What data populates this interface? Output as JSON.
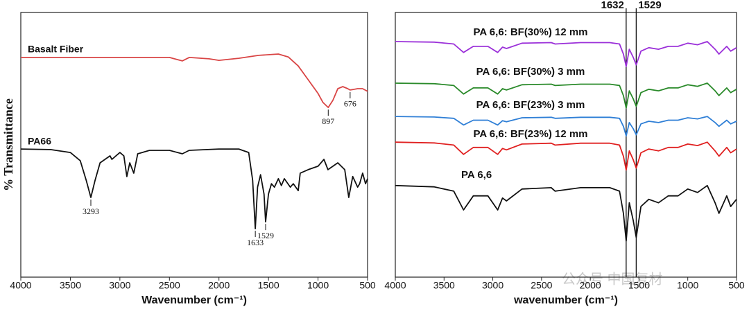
{
  "chart_data": [
    {
      "type": "line",
      "ylabel": "% Transmittance",
      "xlabel": "Wavenumber (cm⁻¹)",
      "xlim": [
        4000,
        500
      ],
      "xticks": [
        4000,
        3500,
        3000,
        2500,
        2000,
        1500,
        1000,
        500
      ],
      "ylim": [
        0,
        100
      ],
      "series": [
        {
          "name": "Basalt Fiber",
          "color": "#d94545",
          "x": [
            4000,
            3500,
            3000,
            2500,
            2370,
            2300,
            2100,
            2000,
            1800,
            1600,
            1400,
            1300,
            1200,
            1100,
            1000,
            950,
            897,
            850,
            800,
            750,
            700,
            676,
            600,
            550,
            500
          ],
          "values": [
            83.0,
            83.0,
            83.0,
            83.0,
            81.7,
            83.0,
            82.5,
            81.9,
            82.7,
            83.8,
            84.3,
            83.2,
            79.8,
            74.6,
            69.4,
            66.0,
            64.1,
            66.8,
            71.2,
            72.0,
            71.2,
            70.7,
            71.2,
            71.2,
            70.2
          ],
          "peaks": [
            897,
            676
          ]
        },
        {
          "name": "PA66",
          "color": "#111111",
          "x": [
            4000,
            3700,
            3500,
            3400,
            3340,
            3293,
            3250,
            3200,
            3100,
            3080,
            3000,
            2960,
            2930,
            2900,
            2860,
            2820,
            2700,
            2500,
            2370,
            2300,
            2000,
            1800,
            1700,
            1660,
            1633,
            1610,
            1580,
            1545,
            1529,
            1500,
            1470,
            1440,
            1400,
            1370,
            1340,
            1280,
            1250,
            1200,
            1180,
            1100,
            1000,
            940,
            900,
            800,
            730,
            690,
            650,
            600,
            580,
            550,
            520,
            500
          ],
          "values": [
            48.4,
            48.2,
            47.1,
            44.0,
            36.6,
            30.1,
            36.6,
            43.2,
            45.8,
            44.5,
            47.1,
            45.8,
            38.0,
            43.2,
            39.3,
            46.6,
            47.9,
            47.9,
            46.6,
            47.9,
            48.4,
            48.4,
            47.1,
            36.6,
            18.3,
            34.0,
            38.7,
            31.4,
            20.9,
            31.4,
            35.3,
            34.0,
            37.2,
            34.6,
            37.2,
            34.0,
            35.3,
            32.7,
            39.3,
            40.6,
            41.9,
            44.5,
            40.6,
            43.2,
            40.6,
            30.1,
            38.0,
            34.0,
            35.3,
            39.3,
            35.3,
            37.2
          ],
          "peaks": [
            3293,
            1633,
            1529
          ]
        }
      ]
    },
    {
      "type": "line",
      "xlabel": "wavenumber (cm⁻¹)",
      "xlim": [
        4000,
        500
      ],
      "xticks": [
        4000,
        3500,
        3000,
        2500,
        2000,
        1500,
        1000,
        500
      ],
      "ylim": [
        0,
        100
      ],
      "vlines": [
        1632,
        1529
      ],
      "x": [
        4000,
        3600,
        3400,
        3300,
        3200,
        3050,
        2950,
        2900,
        2860,
        2700,
        2400,
        2360,
        2100,
        1800,
        1700,
        1660,
        1632,
        1600,
        1560,
        1529,
        1480,
        1400,
        1300,
        1200,
        1100,
        1000,
        900,
        800,
        720,
        680,
        600,
        560,
        500
      ],
      "series": [
        {
          "name": "PA 6,6: BF(30%) 12 mm",
          "color": "#9b30d9",
          "values": [
            89.0,
            88.8,
            88.1,
            84.9,
            87.2,
            87.2,
            84.9,
            86.9,
            86.4,
            88.4,
            88.6,
            88.1,
            88.6,
            88.6,
            88.1,
            84.3,
            79.6,
            86.1,
            83.1,
            80.2,
            85.4,
            86.7,
            86.1,
            87.2,
            87.2,
            88.4,
            87.8,
            89.0,
            86.1,
            84.3,
            87.2,
            85.4,
            86.7
          ]
        },
        {
          "name": "PA 6,6: BF(30%) 3 mm",
          "color": "#2a8a2a",
          "values": [
            73.3,
            73.1,
            72.4,
            69.2,
            71.5,
            71.5,
            69.2,
            71.2,
            70.7,
            72.7,
            72.9,
            72.4,
            72.9,
            72.9,
            72.4,
            68.6,
            63.9,
            70.4,
            67.4,
            64.5,
            69.7,
            71.0,
            70.4,
            71.5,
            71.5,
            72.7,
            72.1,
            73.3,
            70.4,
            68.6,
            71.5,
            69.7,
            71.0
          ]
        },
        {
          "name": "PA 6,6: BF(23%) 3 mm",
          "color": "#2f7fd6",
          "values": [
            60.7,
            60.5,
            60.0,
            57.5,
            59.3,
            59.3,
            57.5,
            59.1,
            58.7,
            60.2,
            60.4,
            60.0,
            60.4,
            60.4,
            60.0,
            57.0,
            53.4,
            58.4,
            56.1,
            53.8,
            57.9,
            58.9,
            58.4,
            59.3,
            59.3,
            60.2,
            59.8,
            60.7,
            58.4,
            57.0,
            59.3,
            57.9,
            58.9
          ]
        },
        {
          "name": "PA 6,6: BF(23%) 12 mm",
          "color": "#e02020",
          "values": [
            51.0,
            50.7,
            49.9,
            46.4,
            49.0,
            49.0,
            46.4,
            48.6,
            48.1,
            50.3,
            50.6,
            49.9,
            50.6,
            50.6,
            49.9,
            45.7,
            40.5,
            47.7,
            44.4,
            41.2,
            47.0,
            48.4,
            47.7,
            49.0,
            49.0,
            50.3,
            49.7,
            51.0,
            47.7,
            45.7,
            49.0,
            47.0,
            48.4
          ]
        },
        {
          "name": "PA 6,6",
          "color": "#111111",
          "values": [
            34.6,
            34.1,
            32.5,
            25.4,
            30.7,
            30.7,
            25.4,
            29.9,
            28.8,
            33.3,
            33.8,
            32.5,
            33.8,
            33.8,
            32.5,
            24.1,
            13.7,
            28.1,
            21.5,
            15.0,
            26.7,
            29.4,
            28.1,
            30.7,
            30.7,
            33.3,
            32.0,
            34.6,
            28.1,
            24.1,
            30.7,
            26.7,
            29.4
          ]
        }
      ]
    }
  ],
  "watermark": "公众号  中国复材"
}
